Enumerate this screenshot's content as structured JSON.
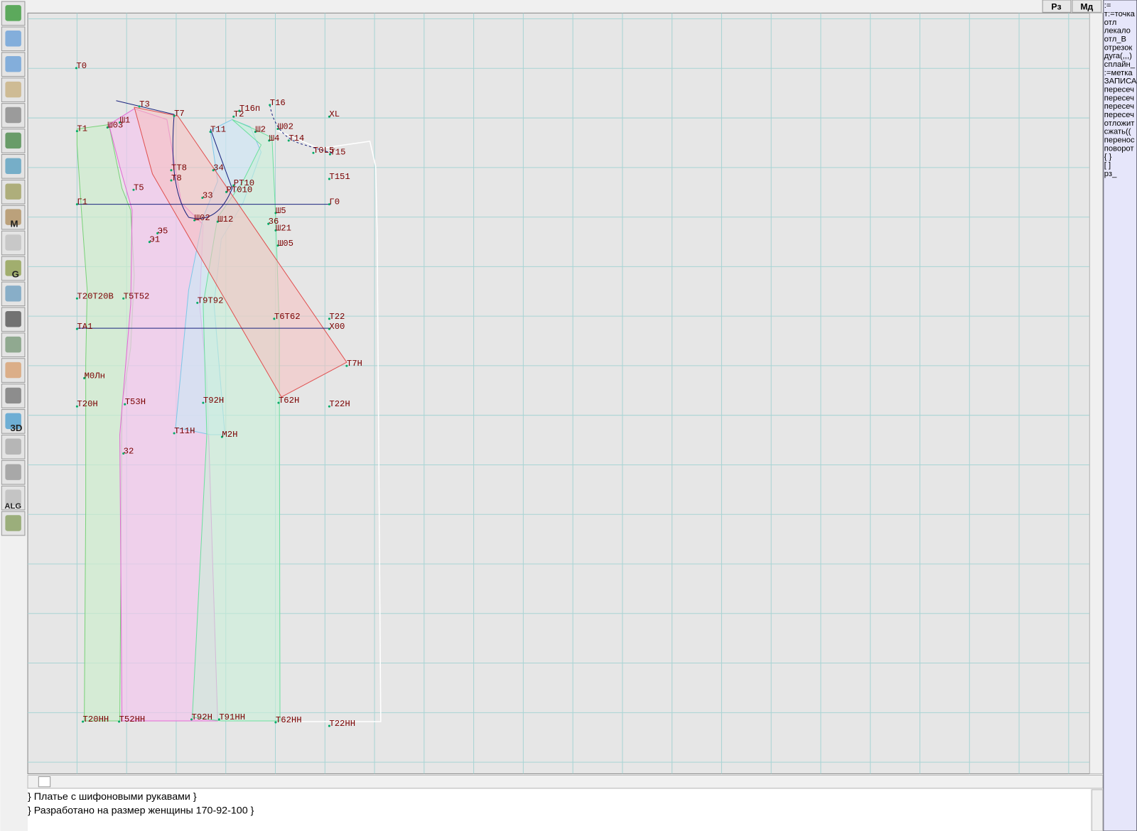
{
  "top_buttons": [
    "Рз",
    "Мд"
  ],
  "tool_labels": [
    "M",
    "G",
    "3D",
    "ALG"
  ],
  "drawing": {
    "points": [
      "Т0",
      "Т3",
      "Т7",
      "Т16п",
      "Т16",
      "Т2",
      "ХL",
      "Т1",
      "Ш03",
      "Ш1",
      "Т11",
      "Ш2",
      "Ш02",
      "Ш4",
      "Т14",
      "Т0L5",
      "Т15",
      "ТТ8",
      "Т8",
      "34",
      "Т151",
      "Т5",
      "РТ10",
      "РТ010",
      "33",
      "Г1",
      "Г0",
      "Ш5",
      "Ш02",
      "Ш12",
      "36",
      "Ш21",
      "Э5",
      "Э1",
      "Ш05",
      "Т20Т20В",
      "Т5Т52",
      "Т9Т92",
      "Т22",
      "Т6Т62",
      "ТА1",
      "Х00",
      "Т7Н",
      "М0Лн",
      "Т20Н",
      "Т53Н",
      "Т92Н",
      "Т62Н",
      "Т22Н",
      "Т11Н",
      "М2Н",
      "32",
      "Т20НН",
      "Т52НН",
      "Т92Н",
      "Т91НН",
      "Т62НН",
      "Т22НН"
    ]
  },
  "commands": [
    ":=",
    "т:=точка",
    "отл",
    "лекало",
    "отл_В",
    "отрезок",
    "дуга(,,,)",
    "сплайн_",
    ":=метка",
    "ЗАПИСА",
    "пересеч",
    "пересеч",
    "пересеч",
    "пересеч",
    "отложит",
    "сжать((",
    "перенос",
    "поворот",
    "{ }",
    "[ ]",
    "рз_"
  ],
  "status": {
    "lines": [
      "} Платье с шифоновыми рукавами }",
      "} Разработано на размер женщины 170-92-100 }"
    ]
  }
}
